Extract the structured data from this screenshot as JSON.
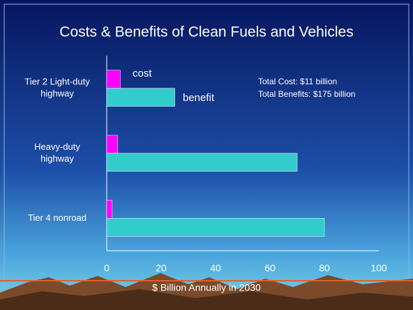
{
  "chart_data": {
    "type": "bar",
    "orientation": "horizontal",
    "title": "Costs & Benefits of Clean Fuels and Vehicles",
    "categories": [
      [
        "Tier 2 Light-duty",
        "highway"
      ],
      [
        "Heavy-duty",
        "highway"
      ],
      [
        "Tier 4 nonroad"
      ]
    ],
    "series": [
      {
        "name": "cost",
        "color": "#ff00ff",
        "values": [
          5,
          4,
          2
        ]
      },
      {
        "name": "benefit",
        "color": "#33cccc",
        "values": [
          25,
          70,
          80
        ]
      }
    ],
    "xlim": [
      0,
      100
    ],
    "xticks": [
      0,
      20,
      40,
      60,
      80,
      100
    ],
    "xlabel": "$ Billion Annually in 2030",
    "annotations": [
      "Total Cost: $11 billion",
      "Total Benefits: $175 billion"
    ]
  }
}
